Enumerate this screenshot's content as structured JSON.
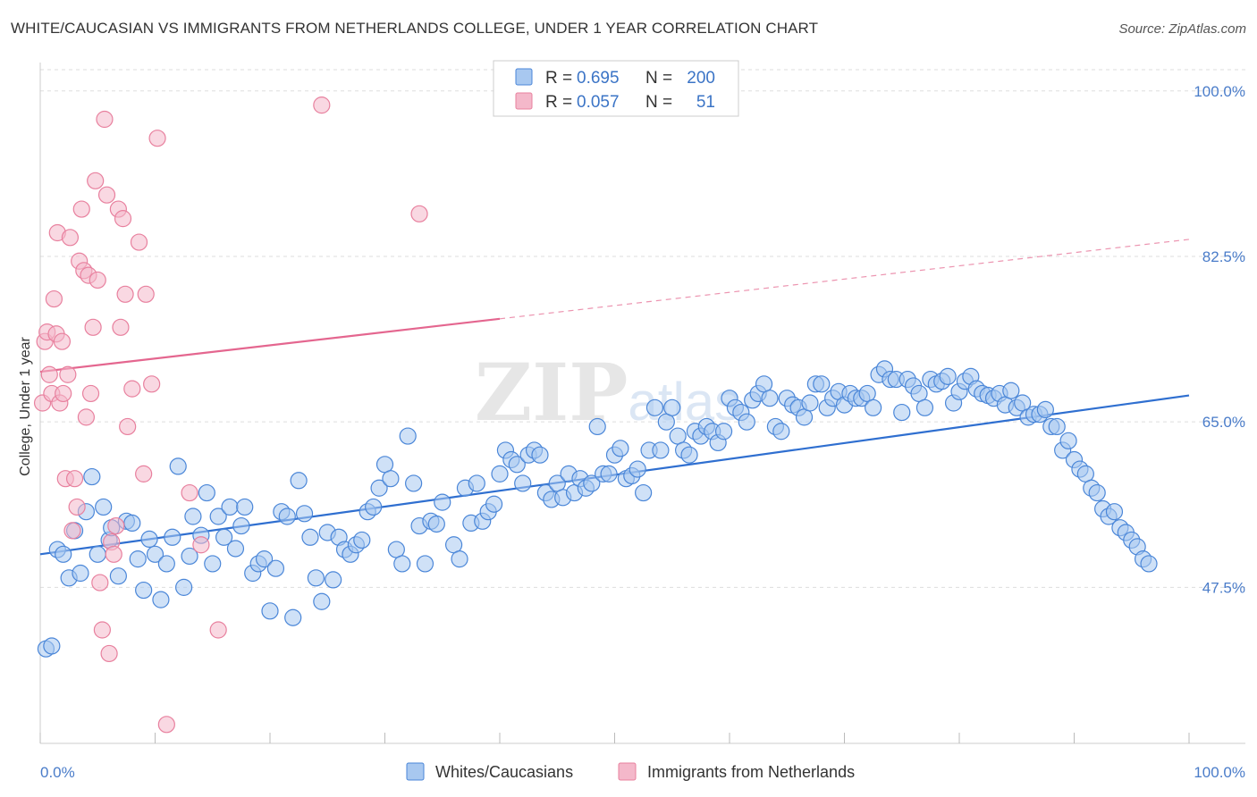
{
  "title": "WHITE/CAUCASIAN VS IMMIGRANTS FROM NETHERLANDS COLLEGE, UNDER 1 YEAR CORRELATION CHART",
  "source": "Source: ZipAtlas.com",
  "watermark": "ZIPatlas",
  "legend_box": {
    "rows": [
      {
        "r_label": "R =",
        "r_value": "0.695",
        "n_label": "N =",
        "n_value": "200",
        "color": "#a8c8f0"
      },
      {
        "r_label": "R =",
        "r_value": "0.057",
        "n_label": "N =",
        "n_value": "51",
        "color": "#f4b8ca"
      }
    ]
  },
  "bottom_legend": [
    {
      "label": "Whites/Caucasians",
      "color": "#a8c8f0"
    },
    {
      "label": "Immigrants from Netherlands",
      "color": "#f4b8ca"
    }
  ],
  "chart_data": {
    "type": "scatter",
    "ylabel": "College, Under 1 year",
    "xlim": [
      0,
      100
    ],
    "ylim": [
      31,
      103
    ],
    "x_tick_labels": [
      "0.0%",
      "100.0%"
    ],
    "y_ticks": [
      100.0,
      82.5,
      65.0,
      47.5
    ],
    "y_tick_labels": [
      "100.0%",
      "82.5%",
      "65.0%",
      "47.5%"
    ],
    "grid": "horizontal dashed",
    "legend_placement": "top-center",
    "series": [
      {
        "name": "Whites/Caucasians",
        "color": "#4a86d8",
        "fill": "#a8c8f0",
        "trend": {
          "x0": 0,
          "y0": 51.0,
          "x1": 100,
          "y1": 67.8,
          "color": "#2f6fd0"
        },
        "points": [
          [
            0.5,
            41.0
          ],
          [
            1,
            41.3
          ],
          [
            1.5,
            51.5
          ],
          [
            2,
            51.0
          ],
          [
            2.5,
            48.5
          ],
          [
            3,
            53.5
          ],
          [
            3.5,
            49.0
          ],
          [
            4,
            55.5
          ],
          [
            4.5,
            59.2
          ],
          [
            5,
            51.0
          ],
          [
            5.5,
            56.0
          ],
          [
            6,
            52.5
          ],
          [
            6.2,
            53.8
          ],
          [
            6.8,
            48.7
          ],
          [
            7.5,
            54.5
          ],
          [
            8,
            54.3
          ],
          [
            8.5,
            50.5
          ],
          [
            9,
            47.2
          ],
          [
            9.5,
            52.6
          ],
          [
            10,
            51.0
          ],
          [
            10.5,
            46.2
          ],
          [
            11,
            50.0
          ],
          [
            11.5,
            52.8
          ],
          [
            12,
            60.3
          ],
          [
            12.5,
            47.5
          ],
          [
            13,
            50.8
          ],
          [
            13.3,
            55.0
          ],
          [
            14,
            53.0
          ],
          [
            14.5,
            57.5
          ],
          [
            15,
            50.0
          ],
          [
            15.5,
            55.0
          ],
          [
            16,
            52.8
          ],
          [
            16.5,
            56.0
          ],
          [
            17,
            51.6
          ],
          [
            17.5,
            54.0
          ],
          [
            17.8,
            56.0
          ],
          [
            18.5,
            49.0
          ],
          [
            19,
            50.0
          ],
          [
            19.5,
            50.5
          ],
          [
            20,
            45.0
          ],
          [
            20.5,
            49.5
          ],
          [
            21,
            55.5
          ],
          [
            21.5,
            55.0
          ],
          [
            22,
            44.3
          ],
          [
            22.5,
            58.8
          ],
          [
            23,
            55.3
          ],
          [
            23.5,
            52.8
          ],
          [
            24,
            48.5
          ],
          [
            24.5,
            46.0
          ],
          [
            25,
            53.3
          ],
          [
            25.5,
            48.3
          ],
          [
            26,
            52.8
          ],
          [
            26.5,
            51.5
          ],
          [
            27,
            51.0
          ],
          [
            27.5,
            52.0
          ],
          [
            28,
            52.5
          ],
          [
            28.5,
            55.5
          ],
          [
            29,
            56.0
          ],
          [
            29.5,
            58.0
          ],
          [
            30,
            60.5
          ],
          [
            30.5,
            59.0
          ],
          [
            31,
            51.5
          ],
          [
            31.5,
            50.0
          ],
          [
            32,
            63.5
          ],
          [
            32.5,
            58.5
          ],
          [
            33,
            54.0
          ],
          [
            33.5,
            50.0
          ],
          [
            34,
            54.5
          ],
          [
            34.5,
            54.2
          ],
          [
            35,
            56.5
          ],
          [
            36,
            52.0
          ],
          [
            36.5,
            50.5
          ],
          [
            37,
            58.0
          ],
          [
            37.5,
            54.3
          ],
          [
            38,
            58.5
          ],
          [
            38.5,
            54.5
          ],
          [
            39,
            55.5
          ],
          [
            39.5,
            56.3
          ],
          [
            40,
            59.5
          ],
          [
            40.5,
            62.0
          ],
          [
            41,
            61.0
          ],
          [
            41.5,
            60.5
          ],
          [
            42,
            58.5
          ],
          [
            42.5,
            61.5
          ],
          [
            43,
            62.0
          ],
          [
            43.5,
            61.5
          ],
          [
            44,
            57.5
          ],
          [
            44.5,
            56.8
          ],
          [
            45,
            58.5
          ],
          [
            45.5,
            57.0
          ],
          [
            46,
            59.5
          ],
          [
            46.5,
            57.5
          ],
          [
            47,
            59.0
          ],
          [
            47.5,
            58.0
          ],
          [
            48,
            58.5
          ],
          [
            48.5,
            64.5
          ],
          [
            49,
            59.5
          ],
          [
            49.5,
            59.5
          ],
          [
            50,
            61.5
          ],
          [
            50.5,
            62.2
          ],
          [
            51,
            59.0
          ],
          [
            51.5,
            59.3
          ],
          [
            52,
            60.0
          ],
          [
            52.5,
            57.5
          ],
          [
            53,
            62.0
          ],
          [
            53.5,
            66.5
          ],
          [
            54,
            62.0
          ],
          [
            54.5,
            65.0
          ],
          [
            55,
            66.5
          ],
          [
            55.5,
            63.5
          ],
          [
            56,
            62.0
          ],
          [
            56.5,
            61.5
          ],
          [
            57,
            64.0
          ],
          [
            57.5,
            63.5
          ],
          [
            58,
            64.5
          ],
          [
            58.5,
            64.0
          ],
          [
            59,
            62.8
          ],
          [
            59.5,
            64.0
          ],
          [
            60,
            67.5
          ],
          [
            60.5,
            66.5
          ],
          [
            61,
            66.0
          ],
          [
            61.5,
            65.0
          ],
          [
            62,
            67.3
          ],
          [
            62.5,
            68.0
          ],
          [
            63,
            69.0
          ],
          [
            63.5,
            67.5
          ],
          [
            64,
            64.5
          ],
          [
            64.5,
            64.0
          ],
          [
            65,
            67.5
          ],
          [
            65.5,
            66.8
          ],
          [
            66,
            66.5
          ],
          [
            66.5,
            65.5
          ],
          [
            67,
            67.0
          ],
          [
            67.5,
            69.0
          ],
          [
            68,
            69.0
          ],
          [
            68.5,
            66.5
          ],
          [
            69,
            67.5
          ],
          [
            69.5,
            68.2
          ],
          [
            70,
            66.8
          ],
          [
            70.5,
            68.0
          ],
          [
            71,
            67.5
          ],
          [
            71.5,
            67.5
          ],
          [
            72,
            68.0
          ],
          [
            72.5,
            66.5
          ],
          [
            73,
            70.0
          ],
          [
            73.5,
            70.6
          ],
          [
            74,
            69.5
          ],
          [
            74.5,
            69.5
          ],
          [
            75,
            66.0
          ],
          [
            75.5,
            69.5
          ],
          [
            76,
            68.8
          ],
          [
            76.5,
            68.0
          ],
          [
            77,
            66.5
          ],
          [
            77.5,
            69.5
          ],
          [
            78,
            69.0
          ],
          [
            78.5,
            69.3
          ],
          [
            79,
            69.8
          ],
          [
            79.5,
            67.0
          ],
          [
            80,
            68.2
          ],
          [
            80.5,
            69.3
          ],
          [
            81,
            69.8
          ],
          [
            81.5,
            68.5
          ],
          [
            82,
            68.0
          ],
          [
            82.5,
            67.8
          ],
          [
            83,
            67.5
          ],
          [
            83.5,
            68.0
          ],
          [
            84,
            66.8
          ],
          [
            84.5,
            68.3
          ],
          [
            85,
            66.5
          ],
          [
            85.5,
            67.0
          ],
          [
            86,
            65.5
          ],
          [
            86.5,
            65.8
          ],
          [
            87,
            65.8
          ],
          [
            87.5,
            66.3
          ],
          [
            88,
            64.5
          ],
          [
            88.5,
            64.5
          ],
          [
            89,
            62.0
          ],
          [
            89.5,
            63.0
          ],
          [
            90,
            61.0
          ],
          [
            90.5,
            60.0
          ],
          [
            91,
            59.5
          ],
          [
            91.5,
            58.0
          ],
          [
            92,
            57.5
          ],
          [
            92.5,
            55.8
          ],
          [
            93,
            55.0
          ],
          [
            93.5,
            55.5
          ],
          [
            94,
            53.8
          ],
          [
            94.5,
            53.3
          ],
          [
            95,
            52.5
          ],
          [
            95.5,
            51.8
          ],
          [
            96,
            50.5
          ],
          [
            96.5,
            50.0
          ]
        ]
      },
      {
        "name": "Immigrants from Netherlands",
        "color": "#e8809e",
        "fill": "#f4b8ca",
        "trend": {
          "x0": 0,
          "y0": 70.3,
          "x1": 100,
          "y1": 84.3,
          "solid_until": 40,
          "color": "#e4668f"
        },
        "points": [
          [
            0.2,
            67.0
          ],
          [
            0.4,
            73.5
          ],
          [
            0.6,
            74.5
          ],
          [
            0.8,
            70.0
          ],
          [
            1,
            68.0
          ],
          [
            1.2,
            78.0
          ],
          [
            1.4,
            74.3
          ],
          [
            1.5,
            85.0
          ],
          [
            1.7,
            67.0
          ],
          [
            1.9,
            73.5
          ],
          [
            2,
            68.0
          ],
          [
            2.2,
            59.0
          ],
          [
            2.4,
            70.0
          ],
          [
            2.6,
            84.5
          ],
          [
            2.8,
            53.5
          ],
          [
            3,
            59.0
          ],
          [
            3.2,
            56.0
          ],
          [
            3.4,
            82.0
          ],
          [
            3.6,
            87.5
          ],
          [
            3.8,
            81.0
          ],
          [
            4,
            65.5
          ],
          [
            4.2,
            80.5
          ],
          [
            4.4,
            68.0
          ],
          [
            4.6,
            75.0
          ],
          [
            4.8,
            90.5
          ],
          [
            5,
            80.0
          ],
          [
            5.2,
            48.0
          ],
          [
            5.4,
            43.0
          ],
          [
            5.6,
            97.0
          ],
          [
            5.8,
            89.0
          ],
          [
            6,
            40.5
          ],
          [
            6.2,
            52.3
          ],
          [
            6.4,
            51.0
          ],
          [
            6.6,
            54.0
          ],
          [
            6.8,
            87.5
          ],
          [
            7,
            75.0
          ],
          [
            7.2,
            86.5
          ],
          [
            7.4,
            78.5
          ],
          [
            7.6,
            64.5
          ],
          [
            8,
            68.5
          ],
          [
            8.6,
            84.0
          ],
          [
            9,
            59.5
          ],
          [
            9.2,
            78.5
          ],
          [
            9.7,
            69.0
          ],
          [
            10.2,
            95.0
          ],
          [
            11,
            33.0
          ],
          [
            13,
            57.5
          ],
          [
            14,
            52.0
          ],
          [
            15.5,
            43.0
          ],
          [
            24.5,
            98.5
          ],
          [
            33,
            87.0
          ]
        ]
      }
    ]
  }
}
